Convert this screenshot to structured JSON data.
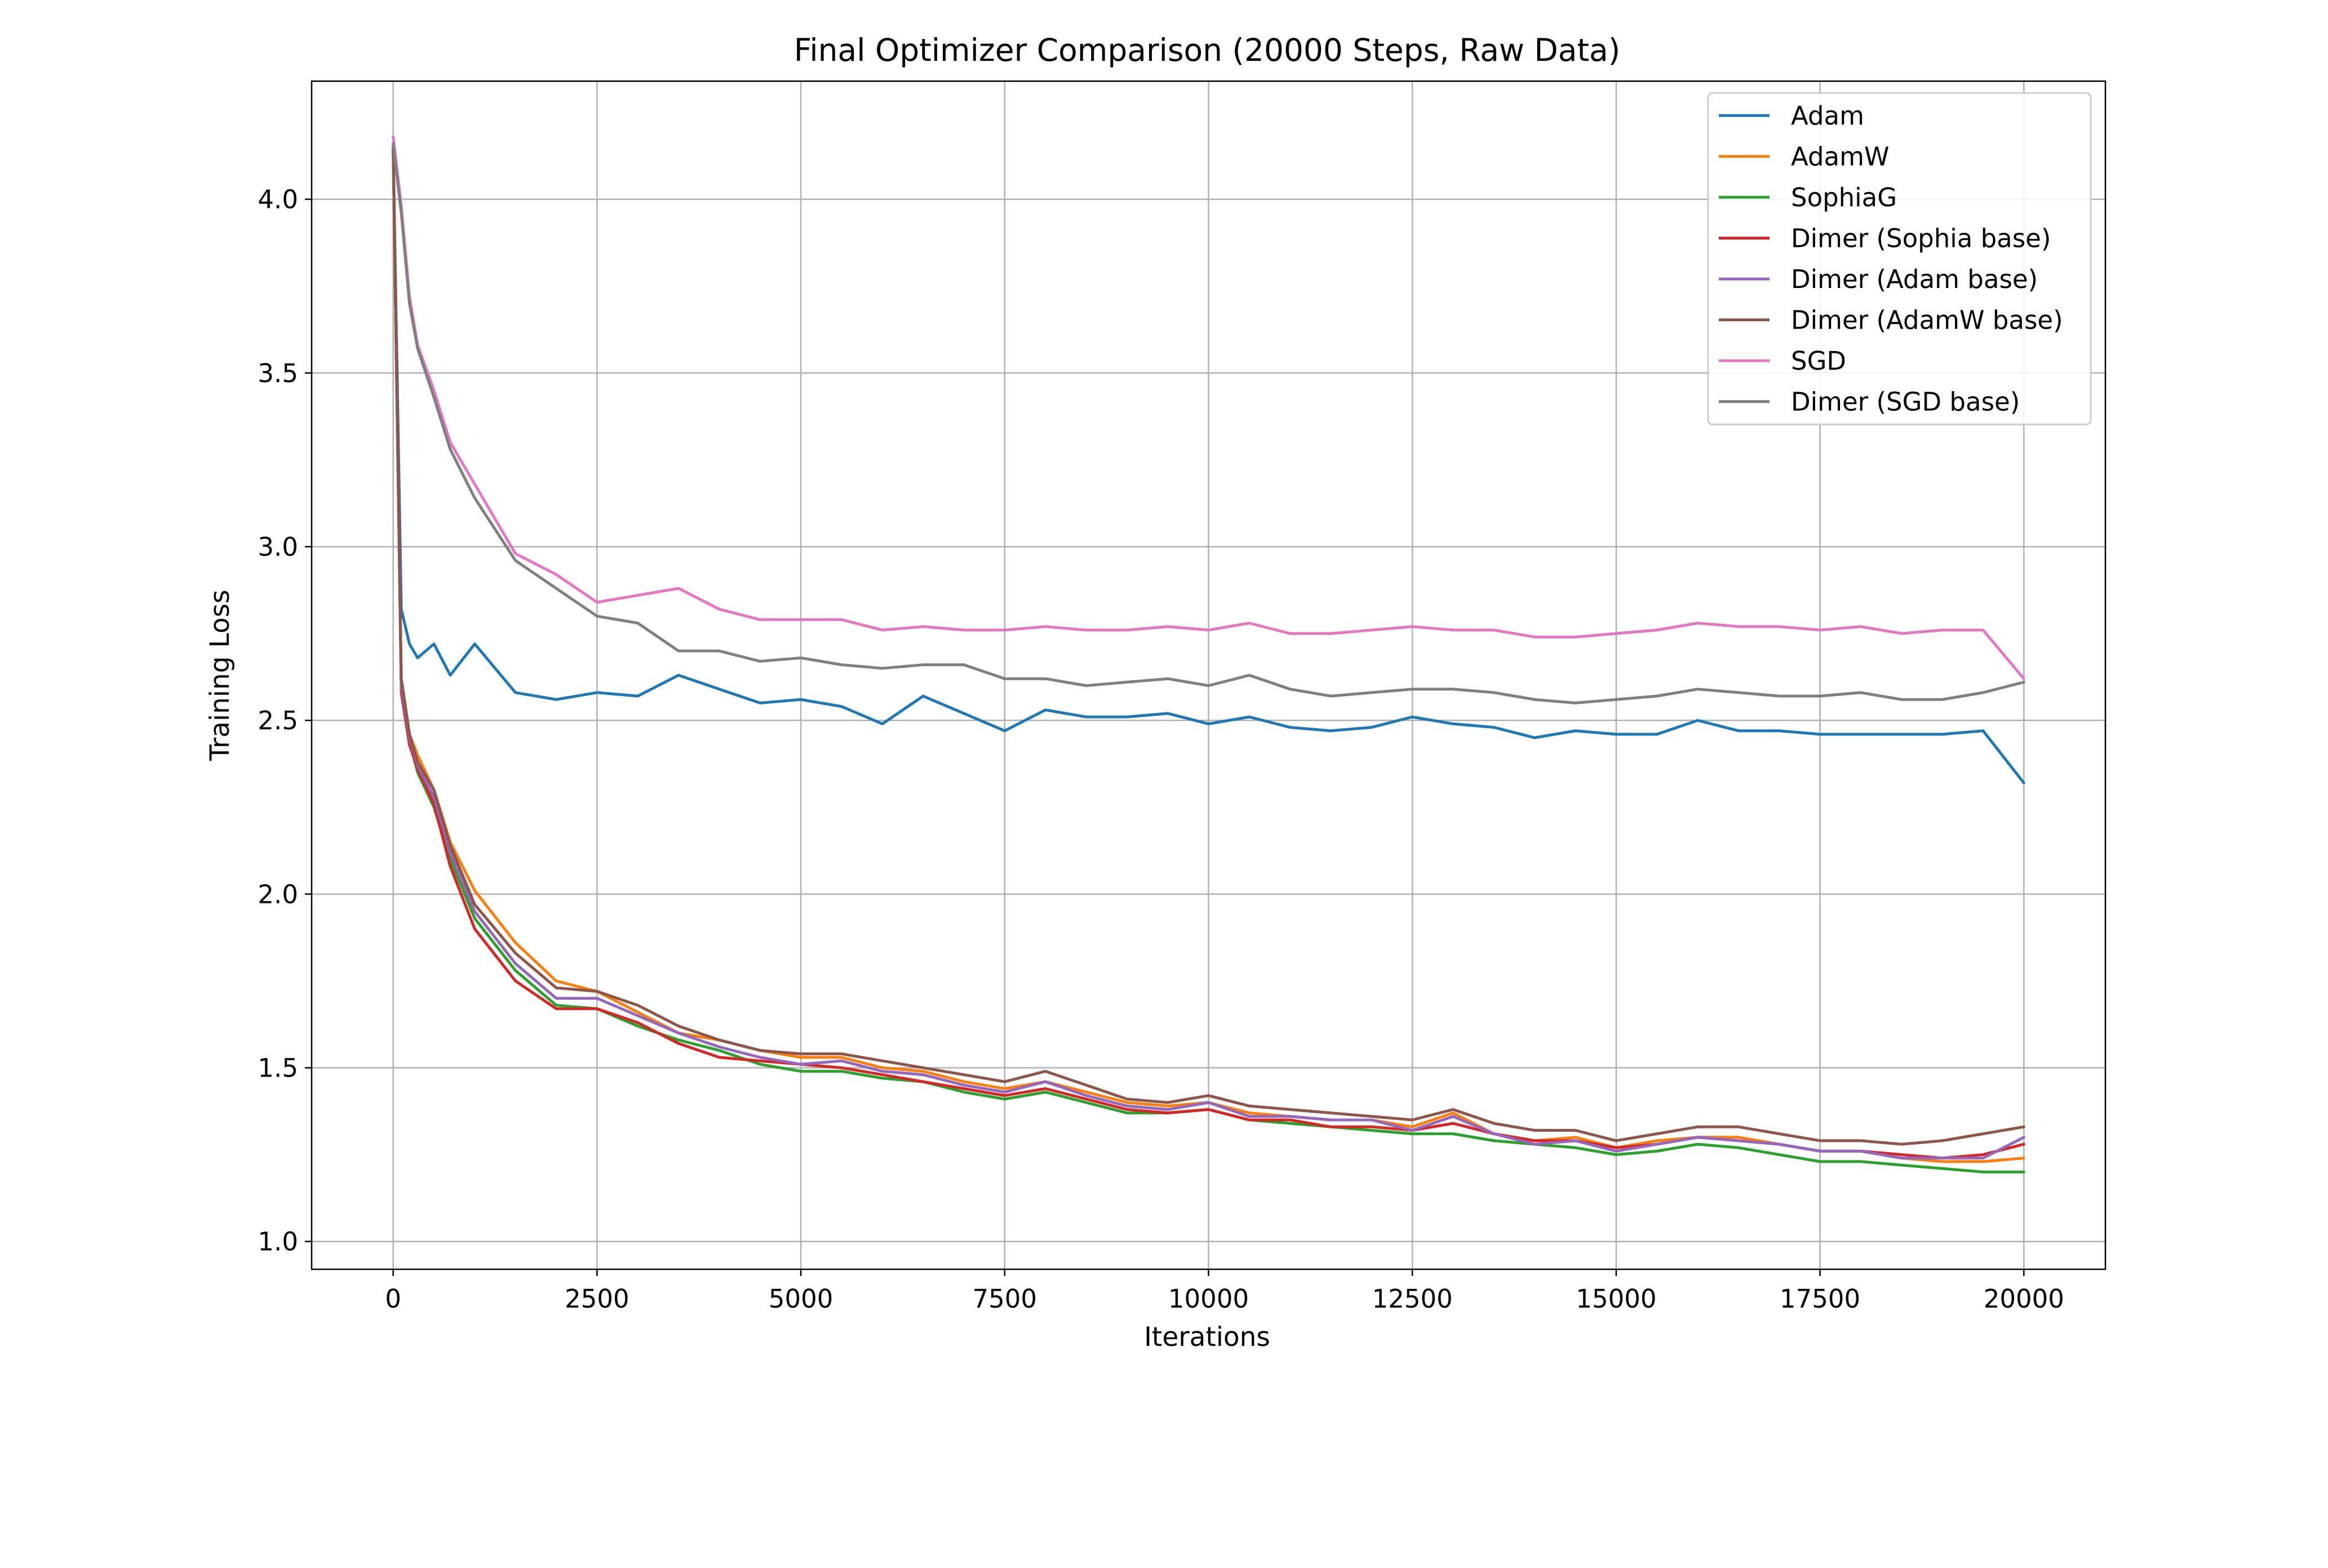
{
  "chart_data": {
    "type": "line",
    "title": "Final Optimizer Comparison (20000 Steps, Raw Data)",
    "xlabel": "Iterations",
    "ylabel": "Training Loss",
    "xlim": [
      -1000,
      21000
    ],
    "ylim": [
      0.92,
      4.34
    ],
    "xticks": [
      0,
      2500,
      5000,
      7500,
      10000,
      12500,
      15000,
      17500,
      20000
    ],
    "yticks": [
      1.0,
      1.5,
      2.0,
      2.5,
      3.0,
      3.5,
      4.0
    ],
    "ytick_labels": [
      "1.0",
      "1.5",
      "2.0",
      "2.5",
      "3.0",
      "3.5",
      "4.0"
    ],
    "grid": true,
    "legend_position": "top-right",
    "x": [
      0,
      100,
      200,
      300,
      500,
      700,
      1000,
      1500,
      2000,
      2500,
      3000,
      3500,
      4000,
      4500,
      5000,
      5500,
      6000,
      6500,
      7000,
      7500,
      8000,
      8500,
      9000,
      9500,
      10000,
      10500,
      11000,
      11500,
      12000,
      12500,
      13000,
      13500,
      14000,
      14500,
      15000,
      15500,
      16000,
      16500,
      17000,
      17500,
      18000,
      18500,
      19000,
      19500,
      20000
    ],
    "series": [
      {
        "name": "Adam",
        "color": "#1f77b4",
        "values": [
          4.15,
          2.82,
          2.72,
          2.68,
          2.72,
          2.63,
          2.72,
          2.58,
          2.56,
          2.58,
          2.57,
          2.63,
          2.59,
          2.55,
          2.56,
          2.54,
          2.49,
          2.57,
          2.52,
          2.47,
          2.53,
          2.51,
          2.51,
          2.52,
          2.49,
          2.51,
          2.48,
          2.47,
          2.48,
          2.51,
          2.49,
          2.48,
          2.45,
          2.47,
          2.46,
          2.46,
          2.5,
          2.47,
          2.47,
          2.46,
          2.46,
          2.46,
          2.46,
          2.47,
          2.32
        ]
      },
      {
        "name": "AdamW",
        "color": "#ff7f0e",
        "values": [
          4.15,
          2.62,
          2.46,
          2.4,
          2.3,
          2.15,
          2.01,
          1.86,
          1.75,
          1.72,
          1.66,
          1.6,
          1.58,
          1.55,
          1.53,
          1.53,
          1.5,
          1.49,
          1.46,
          1.44,
          1.46,
          1.43,
          1.4,
          1.39,
          1.4,
          1.37,
          1.36,
          1.35,
          1.35,
          1.33,
          1.37,
          1.31,
          1.29,
          1.3,
          1.27,
          1.29,
          1.3,
          1.3,
          1.28,
          1.26,
          1.26,
          1.24,
          1.23,
          1.23,
          1.24
        ]
      },
      {
        "name": "SophiaG",
        "color": "#2ca02c",
        "values": [
          4.15,
          2.6,
          2.44,
          2.35,
          2.25,
          2.1,
          1.93,
          1.78,
          1.68,
          1.67,
          1.62,
          1.58,
          1.55,
          1.51,
          1.49,
          1.49,
          1.47,
          1.46,
          1.43,
          1.41,
          1.43,
          1.4,
          1.37,
          1.37,
          1.38,
          1.35,
          1.34,
          1.33,
          1.32,
          1.31,
          1.31,
          1.29,
          1.28,
          1.27,
          1.25,
          1.26,
          1.28,
          1.27,
          1.25,
          1.23,
          1.23,
          1.22,
          1.21,
          1.2,
          1.2
        ]
      },
      {
        "name": "Dimer (Sophia base)",
        "color": "#d62728",
        "values": [
          4.15,
          2.58,
          2.43,
          2.36,
          2.26,
          2.08,
          1.9,
          1.75,
          1.67,
          1.67,
          1.63,
          1.57,
          1.53,
          1.52,
          1.51,
          1.5,
          1.48,
          1.46,
          1.44,
          1.42,
          1.44,
          1.41,
          1.38,
          1.37,
          1.38,
          1.35,
          1.35,
          1.33,
          1.33,
          1.32,
          1.34,
          1.31,
          1.29,
          1.29,
          1.27,
          1.28,
          1.3,
          1.29,
          1.28,
          1.26,
          1.26,
          1.25,
          1.24,
          1.25,
          1.28
        ]
      },
      {
        "name": "Dimer (Adam base)",
        "color": "#9467bd",
        "values": [
          4.15,
          2.6,
          2.45,
          2.37,
          2.28,
          2.12,
          1.95,
          1.8,
          1.7,
          1.7,
          1.65,
          1.6,
          1.56,
          1.53,
          1.51,
          1.52,
          1.49,
          1.48,
          1.45,
          1.43,
          1.46,
          1.42,
          1.39,
          1.38,
          1.4,
          1.36,
          1.36,
          1.35,
          1.35,
          1.32,
          1.36,
          1.31,
          1.28,
          1.29,
          1.26,
          1.28,
          1.3,
          1.29,
          1.28,
          1.26,
          1.26,
          1.24,
          1.24,
          1.24,
          1.3
        ]
      },
      {
        "name": "Dimer (AdamW base)",
        "color": "#8c564b",
        "values": [
          4.15,
          2.62,
          2.46,
          2.38,
          2.3,
          2.14,
          1.97,
          1.83,
          1.73,
          1.72,
          1.68,
          1.62,
          1.58,
          1.55,
          1.54,
          1.54,
          1.52,
          1.5,
          1.48,
          1.46,
          1.49,
          1.45,
          1.41,
          1.4,
          1.42,
          1.39,
          1.38,
          1.37,
          1.36,
          1.35,
          1.38,
          1.34,
          1.32,
          1.32,
          1.29,
          1.31,
          1.33,
          1.33,
          1.31,
          1.29,
          1.29,
          1.28,
          1.29,
          1.31,
          1.33
        ]
      },
      {
        "name": "SGD",
        "color": "#e377c2",
        "values": [
          4.18,
          3.98,
          3.72,
          3.58,
          3.45,
          3.3,
          3.18,
          2.98,
          2.92,
          2.84,
          2.86,
          2.88,
          2.82,
          2.79,
          2.79,
          2.79,
          2.76,
          2.77,
          2.76,
          2.76,
          2.77,
          2.76,
          2.76,
          2.77,
          2.76,
          2.78,
          2.75,
          2.75,
          2.76,
          2.77,
          2.76,
          2.76,
          2.74,
          2.74,
          2.75,
          2.76,
          2.78,
          2.77,
          2.77,
          2.76,
          2.77,
          2.75,
          2.76,
          2.76,
          2.62
        ]
      },
      {
        "name": "Dimer (SGD base)",
        "color": "#7f7f7f",
        "values": [
          4.16,
          3.96,
          3.7,
          3.57,
          3.43,
          3.28,
          3.14,
          2.96,
          2.88,
          2.8,
          2.78,
          2.7,
          2.7,
          2.67,
          2.68,
          2.66,
          2.65,
          2.66,
          2.66,
          2.62,
          2.62,
          2.6,
          2.61,
          2.62,
          2.6,
          2.63,
          2.59,
          2.57,
          2.58,
          2.59,
          2.59,
          2.58,
          2.56,
          2.55,
          2.56,
          2.57,
          2.59,
          2.58,
          2.57,
          2.57,
          2.58,
          2.56,
          2.56,
          2.58,
          2.61
        ]
      }
    ]
  }
}
